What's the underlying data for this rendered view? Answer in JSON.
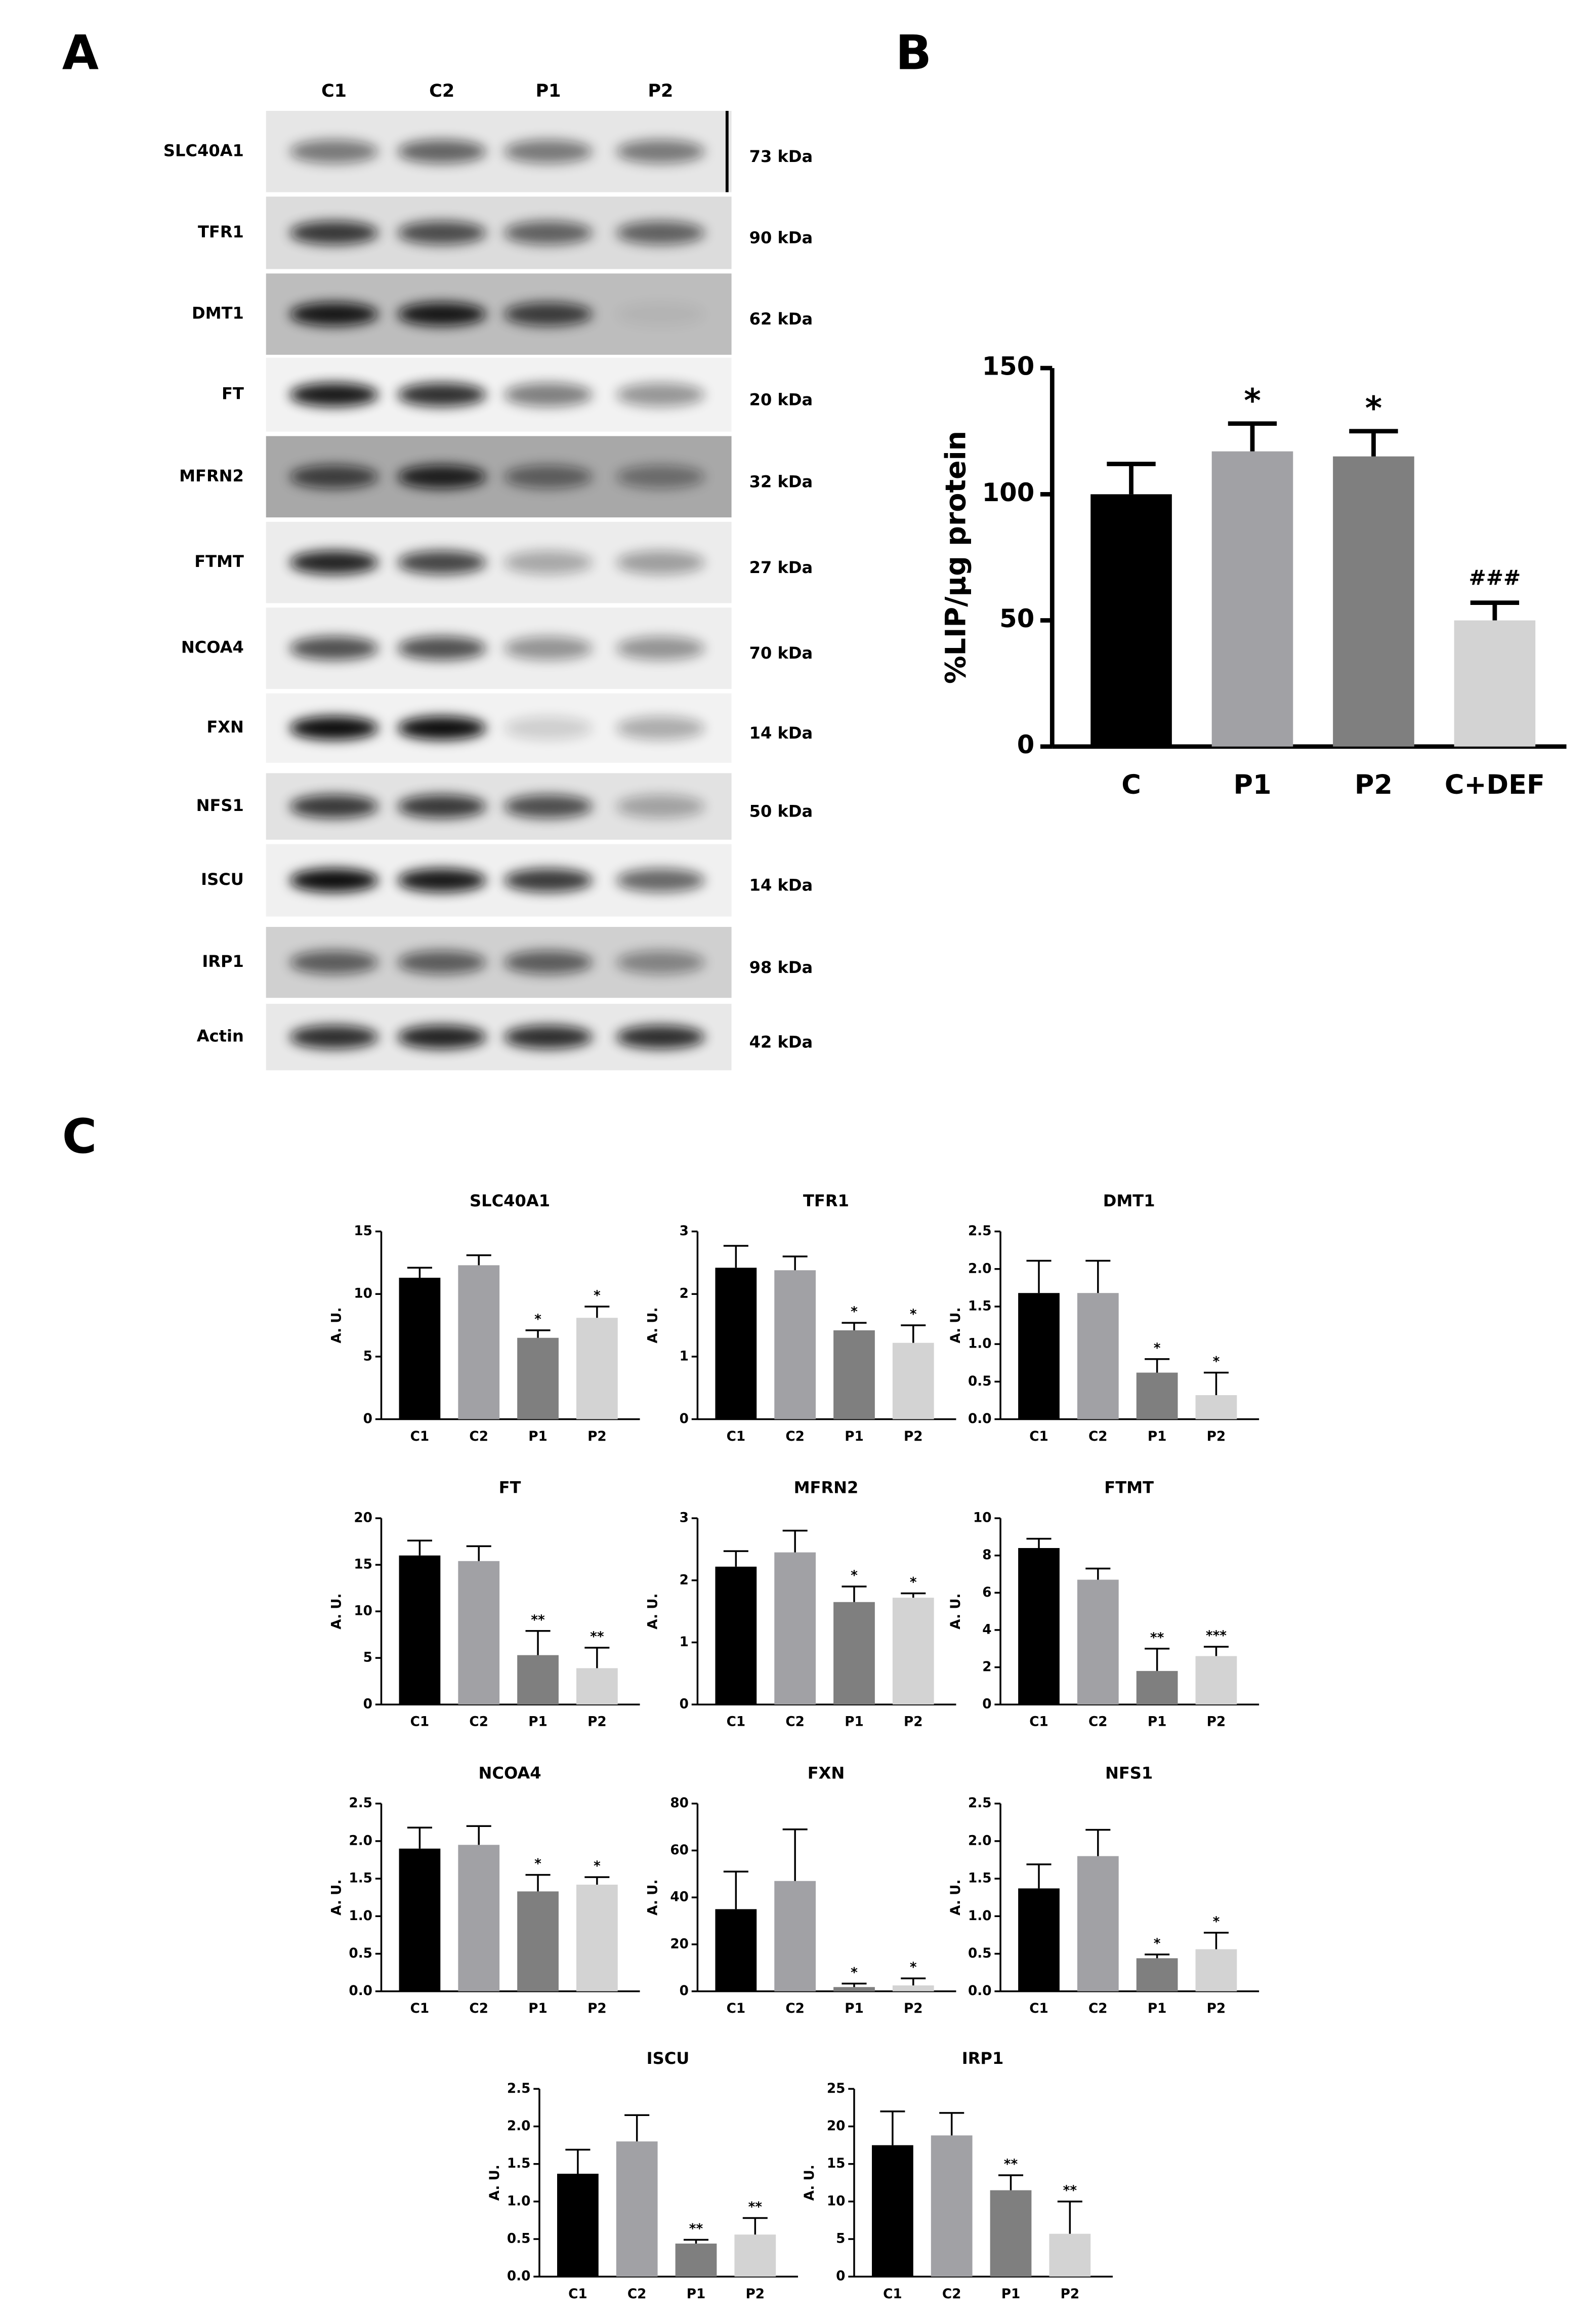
{
  "panel_labels": [
    "A",
    "B",
    "C"
  ],
  "blot": {
    "lanes": [
      "C1",
      "C2",
      "P1",
      "P2"
    ],
    "rows": [
      {
        "protein": "SLC40A1",
        "size": "73 kDa"
      },
      {
        "protein": "TFR1",
        "size": "90 kDa"
      },
      {
        "protein": "DMT1",
        "size": "62 kDa"
      },
      {
        "protein": "FT",
        "size": "20 kDa"
      },
      {
        "protein": "MFRN2",
        "size": "32 kDa"
      },
      {
        "protein": "FTMT",
        "size": "27 kDa"
      },
      {
        "protein": "NCOA4",
        "size": "70 kDa"
      },
      {
        "protein": "FXN",
        "size": "14 kDa"
      },
      {
        "protein": "NFS1",
        "size": "50 kDa"
      },
      {
        "protein": "ISCU",
        "size": "14 kDa"
      },
      {
        "protein": "IRP1",
        "size": "98 kDa"
      },
      {
        "protein": "Actin",
        "size": "42 kDa"
      }
    ]
  },
  "chart_data": [
    {
      "type": "bar",
      "ylabel": "%LIP/µg protein",
      "categories": [
        "C",
        "P1",
        "P2",
        "C+DEF"
      ],
      "values": [
        100,
        117,
        115,
        50
      ],
      "errors": [
        12,
        11,
        10,
        7
      ],
      "annotations": [
        null,
        "*",
        "*",
        "###"
      ],
      "colors": [
        "#000000",
        "#a1a1a5",
        "#7f7f7f",
        "#d3d3d3"
      ],
      "ylim": [
        0,
        150
      ],
      "yticks": [
        0,
        50,
        100,
        150
      ]
    },
    {
      "type": "bar",
      "title": "SLC40A1",
      "ylabel": "A. U.",
      "categories": [
        "C1",
        "C2",
        "P1",
        "P2"
      ],
      "values": [
        11.3,
        12.3,
        6.5,
        8.1
      ],
      "errors": [
        0.8,
        0.8,
        0.6,
        0.9
      ],
      "annotations": [
        null,
        null,
        "*",
        "*"
      ],
      "colors": [
        "#000000",
        "#a1a1a5",
        "#7f7f7f",
        "#d3d3d3"
      ],
      "ylim": [
        0,
        15
      ],
      "yticks": [
        0,
        5,
        10,
        15
      ]
    },
    {
      "type": "bar",
      "title": "TFR1",
      "ylabel": "A. U.",
      "categories": [
        "C1",
        "C2",
        "P1",
        "P2"
      ],
      "values": [
        2.42,
        2.38,
        1.42,
        1.22
      ],
      "errors": [
        0.35,
        0.22,
        0.12,
        0.28
      ],
      "annotations": [
        null,
        null,
        "*",
        "*"
      ],
      "colors": [
        "#000000",
        "#a1a1a5",
        "#7f7f7f",
        "#d3d3d3"
      ],
      "ylim": [
        0,
        3
      ],
      "yticks": [
        0,
        1,
        2,
        3
      ]
    },
    {
      "type": "bar",
      "title": "DMT1",
      "ylabel": "A. U.",
      "categories": [
        "C1",
        "C2",
        "P1",
        "P2"
      ],
      "values": [
        1.68,
        1.68,
        0.62,
        0.32
      ],
      "errors": [
        0.43,
        0.43,
        0.18,
        0.3
      ],
      "annotations": [
        null,
        null,
        "*",
        "*"
      ],
      "colors": [
        "#000000",
        "#a1a1a5",
        "#7f7f7f",
        "#d3d3d3"
      ],
      "ylim": [
        0,
        2.5
      ],
      "yticks": [
        {
          "value": 0,
          "label": "0.0"
        },
        0.5,
        {
          "value": 1,
          "label": "1.0"
        },
        1.5,
        {
          "value": 2,
          "label": "2.0"
        },
        2.5
      ]
    },
    {
      "type": "bar",
      "title": "FT",
      "ylabel": "A. U.",
      "categories": [
        "C1",
        "C2",
        "P1",
        "P2"
      ],
      "values": [
        16,
        15.4,
        5.3,
        3.9
      ],
      "errors": [
        1.6,
        1.6,
        2.6,
        2.2
      ],
      "annotations": [
        null,
        null,
        "**",
        "**"
      ],
      "colors": [
        "#000000",
        "#a1a1a5",
        "#7f7f7f",
        "#d3d3d3"
      ],
      "ylim": [
        0,
        20
      ],
      "yticks": [
        0,
        5,
        10,
        15,
        20
      ]
    },
    {
      "type": "bar",
      "title": "MFRN2",
      "ylabel": "A. U.",
      "categories": [
        "C1",
        "C2",
        "P1",
        "P2"
      ],
      "values": [
        2.22,
        2.45,
        1.65,
        1.72
      ],
      "errors": [
        0.25,
        0.35,
        0.25,
        0.07
      ],
      "annotations": [
        null,
        null,
        "*",
        "*"
      ],
      "colors": [
        "#000000",
        "#a1a1a5",
        "#7f7f7f",
        "#d3d3d3"
      ],
      "ylim": [
        0,
        3
      ],
      "yticks": [
        0,
        1,
        2,
        3
      ]
    },
    {
      "type": "bar",
      "title": "FTMT",
      "ylabel": "A. U.",
      "categories": [
        "C1",
        "C2",
        "P1",
        "P2"
      ],
      "values": [
        8.4,
        6.7,
        1.8,
        2.6
      ],
      "errors": [
        0.5,
        0.6,
        1.2,
        0.5
      ],
      "annotations": [
        null,
        null,
        "**",
        "***"
      ],
      "colors": [
        "#000000",
        "#a1a1a5",
        "#7f7f7f",
        "#d3d3d3"
      ],
      "ylim": [
        0,
        10
      ],
      "yticks": [
        0,
        2,
        4,
        6,
        8,
        10
      ]
    },
    {
      "type": "bar",
      "title": "NCOA4",
      "ylabel": "A. U.",
      "categories": [
        "C1",
        "C2",
        "P1",
        "P2"
      ],
      "values": [
        1.9,
        1.95,
        1.33,
        1.42
      ],
      "errors": [
        0.28,
        0.25,
        0.22,
        0.1
      ],
      "annotations": [
        null,
        null,
        "*",
        "*"
      ],
      "colors": [
        "#000000",
        "#a1a1a5",
        "#7f7f7f",
        "#d3d3d3"
      ],
      "ylim": [
        0,
        2.5
      ],
      "yticks": [
        {
          "value": 0,
          "label": "0.0"
        },
        0.5,
        {
          "value": 1,
          "label": "1.0"
        },
        1.5,
        {
          "value": 2,
          "label": "2.0"
        },
        2.5
      ]
    },
    {
      "type": "bar",
      "title": "FXN",
      "ylabel": "A. U.",
      "categories": [
        "C1",
        "C2",
        "P1",
        "P2"
      ],
      "values": [
        35,
        47,
        1.8,
        2.5
      ],
      "errors": [
        16,
        22,
        1.5,
        3
      ],
      "annotations": [
        null,
        null,
        "*",
        "*"
      ],
      "colors": [
        "#000000",
        "#a1a1a5",
        "#7f7f7f",
        "#d3d3d3"
      ],
      "ylim": [
        0,
        80
      ],
      "yticks": [
        0,
        20,
        40,
        60,
        80
      ]
    },
    {
      "type": "bar",
      "title": "NFS1",
      "ylabel": "A. U.",
      "categories": [
        "C1",
        "C2",
        "P1",
        "P2"
      ],
      "values": [
        1.37,
        1.8,
        0.44,
        0.56
      ],
      "errors": [
        0.32,
        0.35,
        0.05,
        0.22
      ],
      "annotations": [
        null,
        null,
        "*",
        "*"
      ],
      "colors": [
        "#000000",
        "#a1a1a5",
        "#7f7f7f",
        "#d3d3d3"
      ],
      "ylim": [
        0,
        2.5
      ],
      "yticks": [
        {
          "value": 0,
          "label": "0.0"
        },
        0.5,
        {
          "value": 1,
          "label": "1.0"
        },
        1.5,
        {
          "value": 2,
          "label": "2.0"
        },
        2.5
      ]
    },
    {
      "type": "bar",
      "title": "ISCU",
      "ylabel": "A. U.",
      "categories": [
        "C1",
        "C2",
        "P1",
        "P2"
      ],
      "values": [
        1.37,
        1.8,
        0.44,
        0.56
      ],
      "errors": [
        0.32,
        0.35,
        0.05,
        0.22
      ],
      "annotations": [
        null,
        null,
        "**",
        "**"
      ],
      "colors": [
        "#000000",
        "#a1a1a5",
        "#7f7f7f",
        "#d3d3d3"
      ],
      "ylim": [
        0,
        2.5
      ],
      "yticks": [
        {
          "value": 0,
          "label": "0.0"
        },
        0.5,
        {
          "value": 1,
          "label": "1.0"
        },
        1.5,
        {
          "value": 2,
          "label": "2.0"
        },
        2.5
      ]
    },
    {
      "type": "bar",
      "title": "IRP1",
      "ylabel": "A. U.",
      "categories": [
        "C1",
        "C2",
        "P1",
        "P2"
      ],
      "values": [
        17.5,
        18.8,
        11.5,
        5.7
      ],
      "errors": [
        4.5,
        3,
        2,
        4.3
      ],
      "annotations": [
        null,
        null,
        "**",
        "**"
      ],
      "colors": [
        "#000000",
        "#a1a1a5",
        "#7f7f7f",
        "#d3d3d3"
      ],
      "ylim": [
        0,
        25
      ],
      "yticks": [
        0,
        5,
        10,
        15,
        20,
        25
      ]
    }
  ]
}
